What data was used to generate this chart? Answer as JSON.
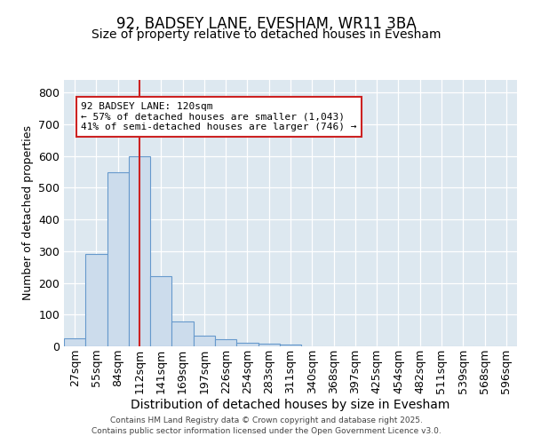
{
  "title": "92, BADSEY LANE, EVESHAM, WR11 3BA",
  "subtitle": "Size of property relative to detached houses in Evesham",
  "xlabel": "Distribution of detached houses by size in Evesham",
  "ylabel": "Number of detached properties",
  "bins": [
    "27sqm",
    "55sqm",
    "84sqm",
    "112sqm",
    "141sqm",
    "169sqm",
    "197sqm",
    "226sqm",
    "254sqm",
    "283sqm",
    "311sqm",
    "340sqm",
    "368sqm",
    "397sqm",
    "425sqm",
    "454sqm",
    "482sqm",
    "511sqm",
    "539sqm",
    "568sqm",
    "596sqm"
  ],
  "values": [
    25,
    290,
    548,
    600,
    222,
    78,
    35,
    22,
    10,
    8,
    7,
    0,
    0,
    0,
    0,
    0,
    0,
    0,
    0,
    0,
    0
  ],
  "bar_color": "#ccdcec",
  "bar_edge_color": "#6699cc",
  "vline_color": "#cc2222",
  "vline_xindex": 3,
  "annotation_line1": "92 BADSEY LANE: 120sqm",
  "annotation_line2": "← 57% of detached houses are smaller (1,043)",
  "annotation_line3": "41% of semi-detached houses are larger (746) →",
  "annotation_box_facecolor": "#ffffff",
  "annotation_box_edgecolor": "#cc2222",
  "ylim": [
    0,
    840
  ],
  "yticks": [
    0,
    100,
    200,
    300,
    400,
    500,
    600,
    700,
    800
  ],
  "background_color": "#dde8f0",
  "title_fontsize": 12,
  "subtitle_fontsize": 10,
  "xlabel_fontsize": 10,
  "ylabel_fontsize": 9,
  "footer1": "Contains HM Land Registry data © Crown copyright and database right 2025.",
  "footer2": "Contains public sector information licensed under the Open Government Licence v3.0."
}
